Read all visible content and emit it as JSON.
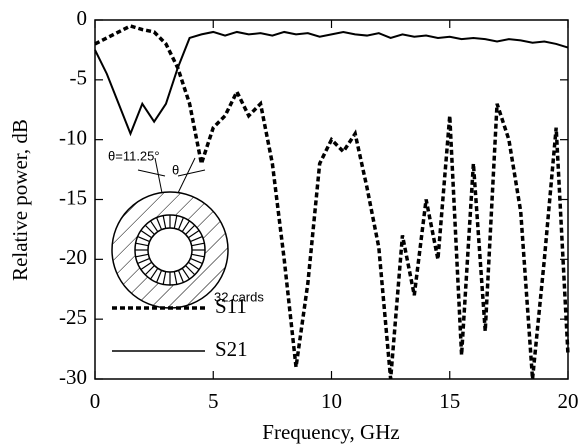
{
  "chart_data": {
    "type": "line",
    "x_label": "Frequency, GHz",
    "y_label": "Relative power, dB",
    "x": [
      0,
      0.5,
      1,
      1.5,
      2,
      2.5,
      3,
      3.5,
      4,
      4.5,
      5,
      5.5,
      6,
      6.5,
      7,
      7.5,
      8,
      8.5,
      9,
      9.5,
      10,
      10.5,
      11,
      11.5,
      12,
      12.5,
      13,
      13.5,
      14,
      14.5,
      15,
      15.5,
      16,
      16.5,
      17,
      17.5,
      18,
      18.5,
      19,
      19.5,
      20
    ],
    "series": [
      {
        "name": "S11",
        "color": "#000000",
        "line_style": "dashed",
        "values": [
          -2,
          -1.5,
          -1,
          -0.5,
          -0.8,
          -1,
          -2,
          -4,
          -7,
          -12,
          -9,
          -8,
          -6,
          -8,
          -7,
          -12,
          -20,
          -29,
          -22,
          -12,
          -10,
          -11,
          -9.5,
          -14,
          -19,
          -30,
          -18,
          -23,
          -15,
          -20,
          -8,
          -28,
          -12,
          -26,
          -7,
          -10,
          -16,
          -30,
          -20,
          -9,
          -28
        ]
      },
      {
        "name": "S21",
        "color": "#000000",
        "line_style": "solid",
        "values": [
          -2.5,
          -4.5,
          -7,
          -9.5,
          -7,
          -8.5,
          -7,
          -4,
          -1.5,
          -1.2,
          -1,
          -1.3,
          -1,
          -1.2,
          -1.1,
          -1.3,
          -1,
          -1.2,
          -1.1,
          -1.4,
          -1.2,
          -1,
          -1.2,
          -1.3,
          -1.1,
          -1.5,
          -1.2,
          -1.4,
          -1.3,
          -1.5,
          -1.4,
          -1.6,
          -1.5,
          -1.6,
          -1.8,
          -1.6,
          -1.7,
          -1.9,
          -1.8,
          -2,
          -2.3
        ]
      }
    ],
    "xlim": [
      0,
      20
    ],
    "xticks": [
      0,
      5,
      10,
      15,
      20
    ],
    "ylim": [
      -30,
      0
    ],
    "yticks": [
      0,
      -5,
      -10,
      -15,
      -20,
      -25,
      -30
    ],
    "legend": "lower left",
    "annotations": [
      "θ=11.25°",
      "θ",
      "32 cards"
    ]
  }
}
